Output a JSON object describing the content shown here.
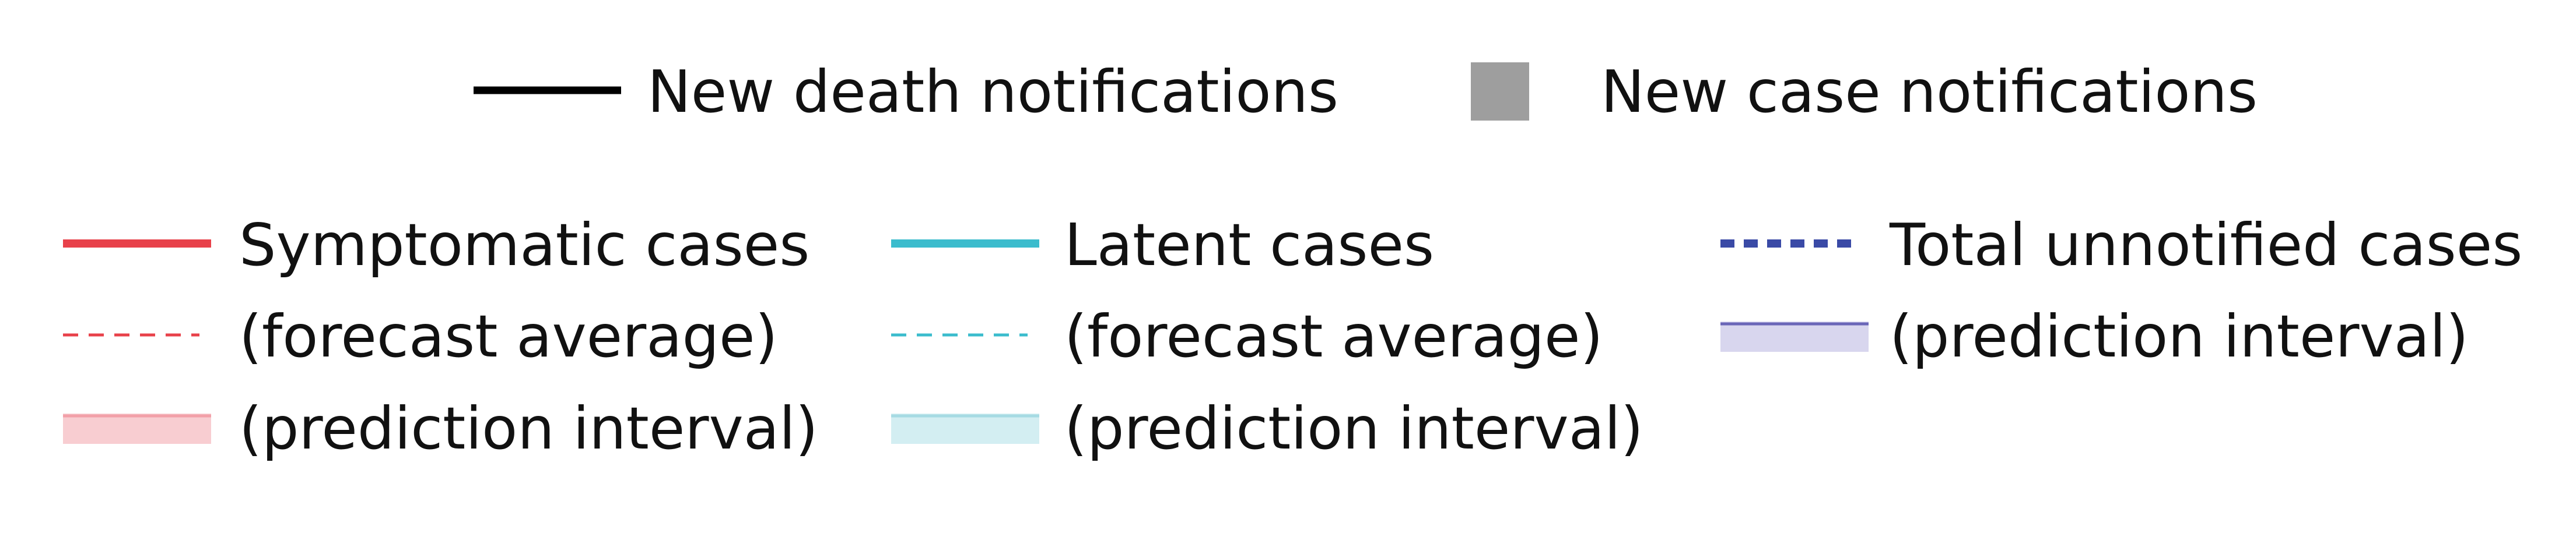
{
  "chart_data": {
    "type": "legend",
    "entries": [
      {
        "label": "New death notifications",
        "marker": "line",
        "color": "#000000",
        "style": "solid"
      },
      {
        "label": "New case notifications",
        "marker": "square",
        "color": "#9e9e9e"
      },
      {
        "label": "Symptomatic cases",
        "marker": "line",
        "color": "#e8414a",
        "style": "solid"
      },
      {
        "label": "(forecast average)",
        "marker": "line",
        "color": "#e8414a",
        "style": "dashed"
      },
      {
        "label": "(prediction interval)",
        "marker": "band",
        "color": "#e8414a"
      },
      {
        "label": "Latent cases",
        "marker": "line",
        "color": "#3bbccd",
        "style": "solid"
      },
      {
        "label": "(forecast average)",
        "marker": "line",
        "color": "#3bbccd",
        "style": "dashed"
      },
      {
        "label": "(prediction interval)",
        "marker": "band",
        "color": "#3bbccd"
      },
      {
        "label": "Total unnotified cases",
        "marker": "line",
        "color": "#3a4aa6",
        "style": "dotted"
      },
      {
        "label": "(prediction interval)",
        "marker": "band",
        "color": "#6a66b8"
      }
    ]
  }
}
